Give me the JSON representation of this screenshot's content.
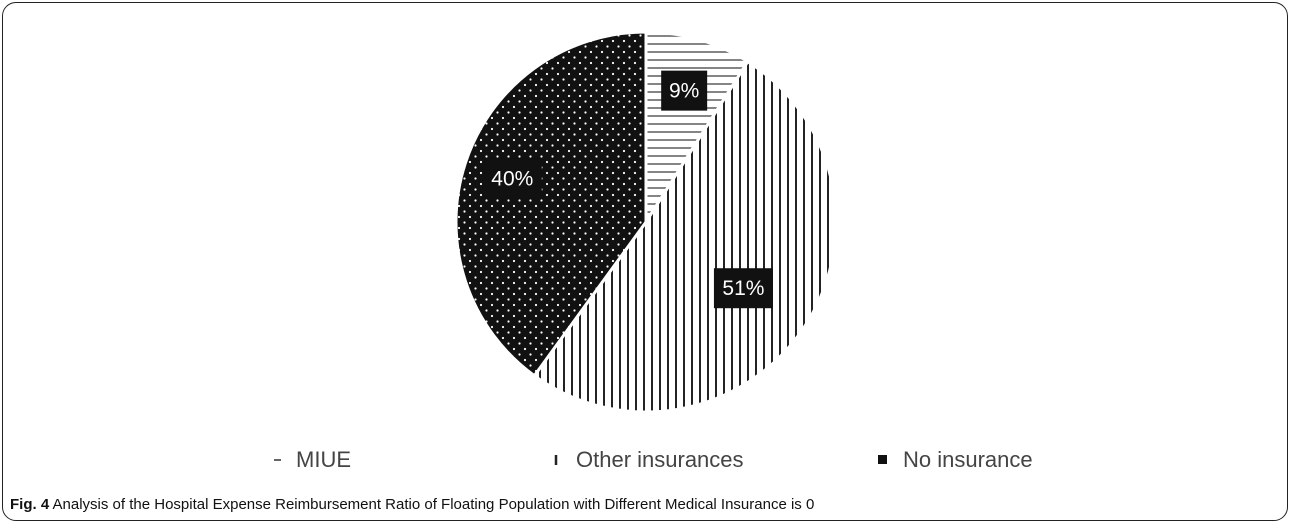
{
  "chart_data": {
    "type": "pie",
    "slices": [
      {
        "label": "MIUE",
        "value": 9,
        "data_label": "9%",
        "pattern": "horizontal-stripes"
      },
      {
        "label": "Other insurances",
        "value": 51,
        "data_label": "51%",
        "pattern": "vertical-stripes"
      },
      {
        "label": "No insurance",
        "value": 40,
        "data_label": "40%",
        "pattern": "dots-on-black"
      }
    ],
    "legend": {
      "position": "bottom",
      "entries": [
        {
          "marker": "–",
          "label": "MIUE"
        },
        {
          "marker": "ı",
          "label": "Other insurances"
        },
        {
          "marker": "■",
          "label": "No insurance"
        }
      ]
    }
  },
  "caption": {
    "figure_label": "Fig. 4",
    "text": "Analysis of the Hospital Expense Reimbursement Ratio of Floating Population with Different Medical Insurance is 0"
  },
  "colors": {
    "ink": "#111111",
    "background": "#ffffff",
    "stripe": "#555555"
  }
}
